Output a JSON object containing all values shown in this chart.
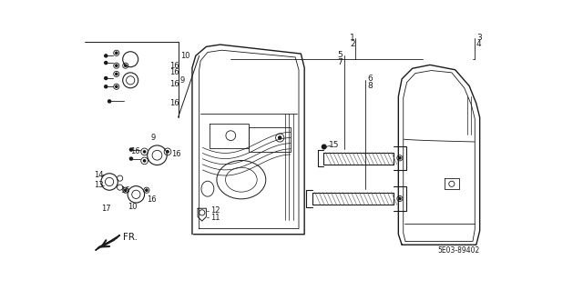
{
  "bg_color": "#ffffff",
  "line_color": "#1a1a1a",
  "diagram_code": "5E03-89402",
  "fr_label": "FR."
}
